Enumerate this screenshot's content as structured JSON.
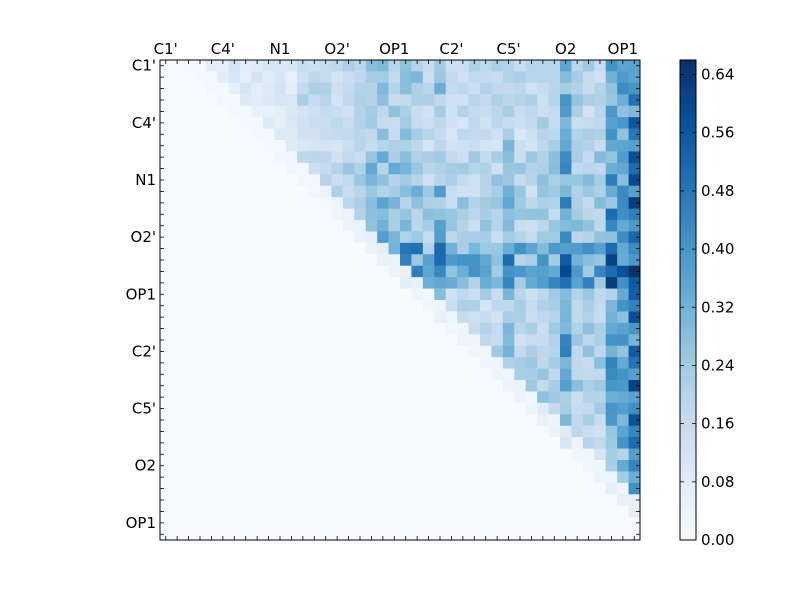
{
  "chart_data": {
    "type": "heatmap",
    "title": "",
    "xlabel": "",
    "ylabel": "",
    "n": 42,
    "x_ticks": [
      {
        "index": 0,
        "label": "C1'"
      },
      {
        "index": 5,
        "label": "C4'"
      },
      {
        "index": 10,
        "label": "N1"
      },
      {
        "index": 15,
        "label": "O2'"
      },
      {
        "index": 20,
        "label": "OP1"
      },
      {
        "index": 25,
        "label": "C2'"
      },
      {
        "index": 30,
        "label": "C5'"
      },
      {
        "index": 35,
        "label": "O2"
      },
      {
        "index": 40,
        "label": "OP1"
      }
    ],
    "y_ticks": [
      {
        "index": 0,
        "label": "C1'"
      },
      {
        "index": 5,
        "label": "C4'"
      },
      {
        "index": 10,
        "label": "N1"
      },
      {
        "index": 15,
        "label": "O2'"
      },
      {
        "index": 20,
        "label": "OP1"
      },
      {
        "index": 25,
        "label": "C2'"
      },
      {
        "index": 30,
        "label": "C5'"
      },
      {
        "index": 35,
        "label": "O2"
      },
      {
        "index": 40,
        "label": "OP1"
      }
    ],
    "colorbar": {
      "colormap": "Blues",
      "min": 0.0,
      "max": 0.66,
      "ticks": [
        0.0,
        0.08,
        0.16,
        0.24,
        0.32,
        0.4,
        0.48,
        0.56,
        0.64
      ],
      "tick_labels": [
        "0.00",
        "0.08",
        "0.16",
        "0.24",
        "0.32",
        "0.40",
        "0.48",
        "0.56",
        "0.64"
      ]
    },
    "mask": "upper-triangle; values below the diagonal are 0",
    "band_values": {
      "c1_row_ring": 0.1,
      "c4_row_ring": 0.08,
      "n1_row_ring": 0.16,
      "o2p_row_ring": 0.18,
      "op1_row_ring": 0.36,
      "c2p_row_ring": 0.12,
      "c5p_row_ring": 0.14,
      "o2_row_ring": 0.1,
      "col_n1_to_op1_band": 0.2,
      "col_op1_ring": 0.33,
      "col_c2p_peak": 0.36,
      "col_c5p_peak": 0.34,
      "col_o2_peak": 0.44,
      "col_op1_terminal": 0.45,
      "col_last_peak": 0.64
    }
  }
}
